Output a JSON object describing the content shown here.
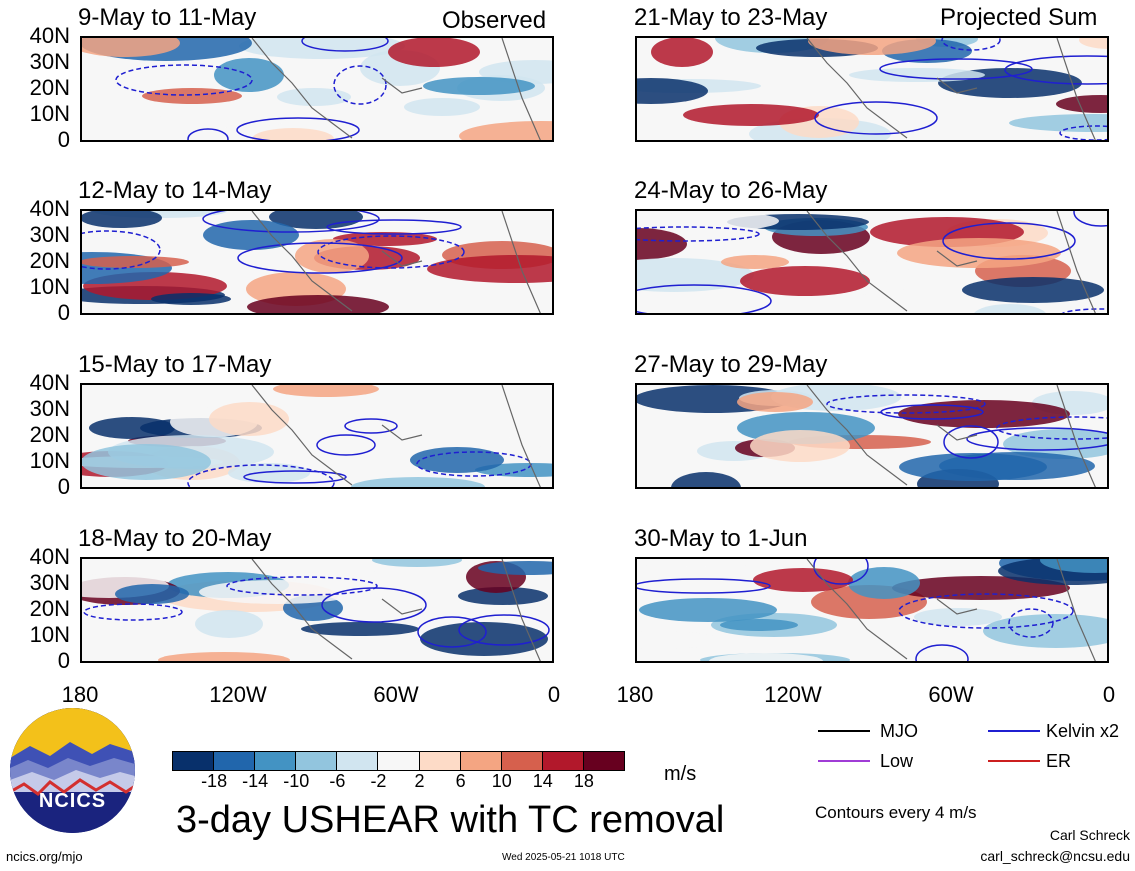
{
  "panels": [
    {
      "title": "9-May to 11-May",
      "label": "Observed"
    },
    {
      "title": "12-May to 14-May",
      "label": ""
    },
    {
      "title": "15-May to 17-May",
      "label": ""
    },
    {
      "title": "18-May to 20-May",
      "label": ""
    },
    {
      "title": "21-May to 23-May",
      "label": "Projected Sum"
    },
    {
      "title": "24-May to 26-May",
      "label": ""
    },
    {
      "title": "27-May to 29-May",
      "label": ""
    },
    {
      "title": "30-May to 1-Jun",
      "label": ""
    }
  ],
  "y_ticks": [
    "40N",
    "30N",
    "20N",
    "10N",
    "0"
  ],
  "x_ticks": [
    "180",
    "120W",
    "60W",
    "0"
  ],
  "colorbar": {
    "labels": [
      "-18",
      "-14",
      "-10",
      "-6",
      "-2",
      "2",
      "6",
      "10",
      "14",
      "18"
    ],
    "units": "m/s",
    "colors": [
      "#08306b",
      "#2166ac",
      "#4393c3",
      "#92c5de",
      "#d1e5f0",
      "#f7f7f7",
      "#fddbc7",
      "#f4a582",
      "#d6604d",
      "#b2182b",
      "#67001f"
    ]
  },
  "legend": {
    "mjo": "MJO",
    "kelvin": "Kelvin x2",
    "low": "Low",
    "er": "ER",
    "colors": {
      "mjo": "#000000",
      "kelvin": "#1f1fd1",
      "low": "#a03cd6",
      "er": "#cc1f1f"
    }
  },
  "main_title": "3-day USHEAR with TC removal",
  "contour_note": "Contours every 4 m/s",
  "author": "Carl Schreck",
  "email": "carl_schreck@ncsu.edu",
  "site": "ncics.org/mjo",
  "timestamp": "Wed 2025-05-21 1018 UTC",
  "logo_text": "NCICS"
}
